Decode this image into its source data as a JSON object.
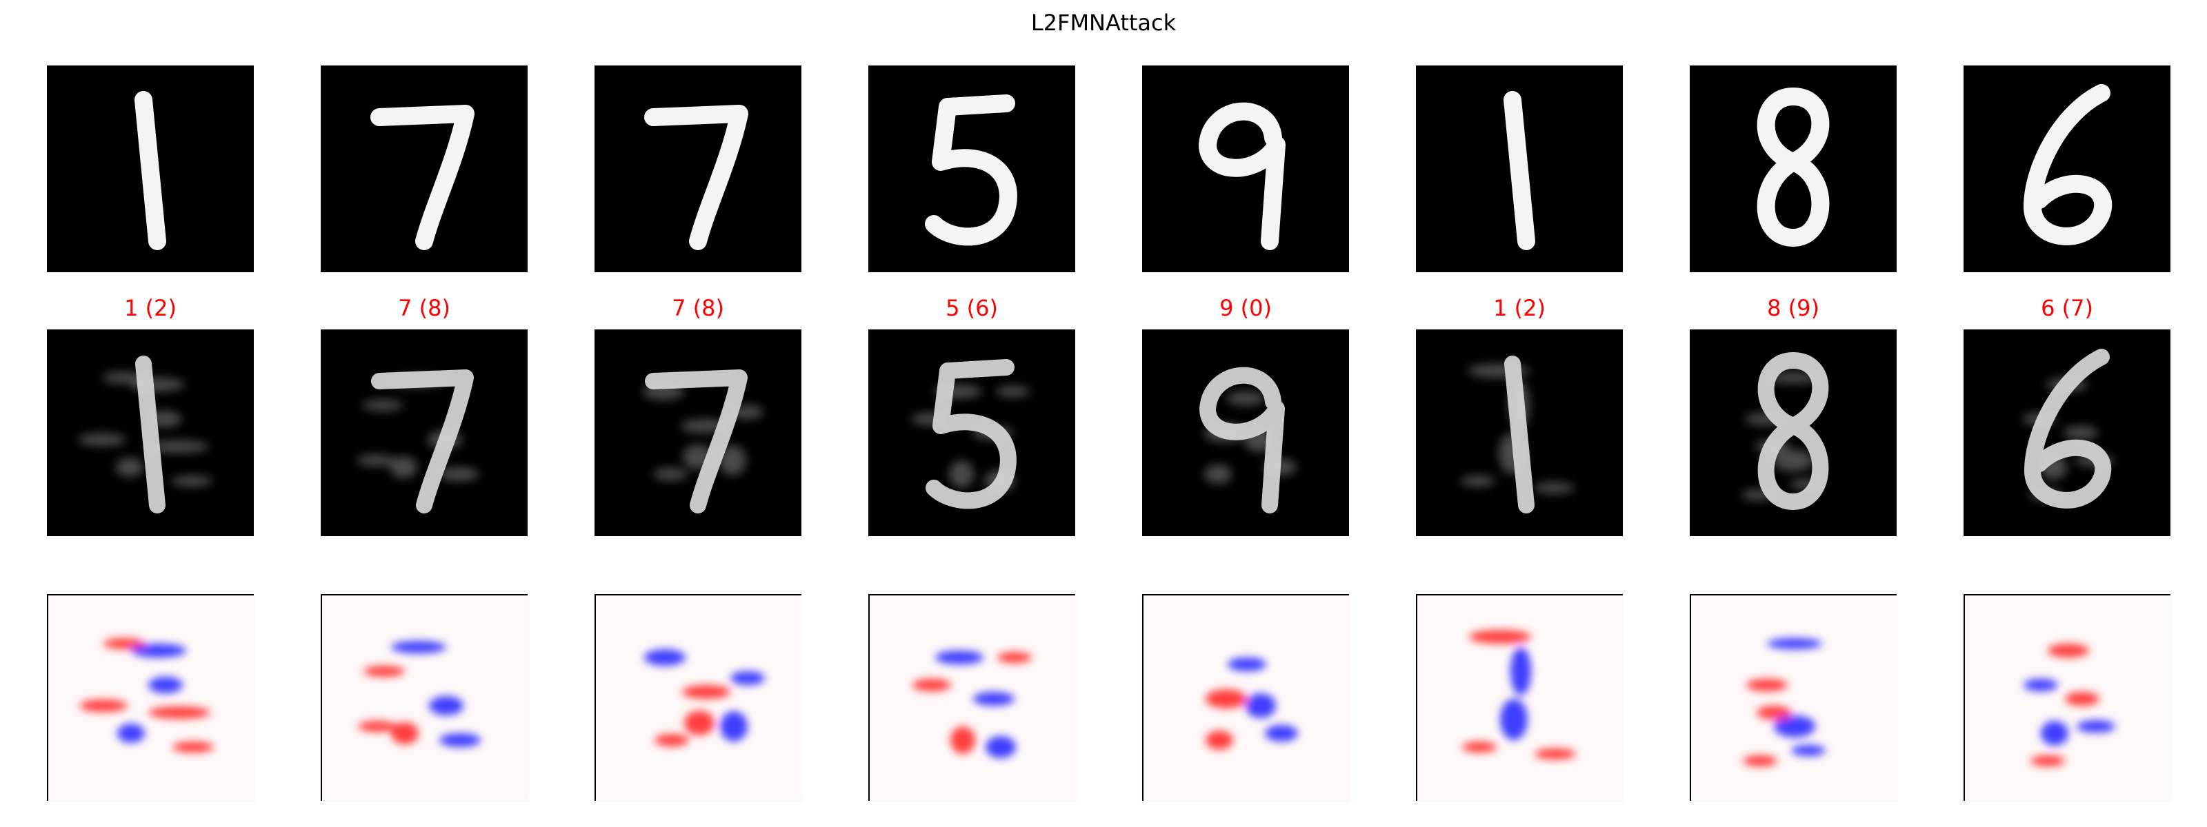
{
  "figure": {
    "title": "L2FMNAttack",
    "colors": {
      "background": "#ffffff",
      "image_bg": "#000000",
      "digit": "#f4f4f4",
      "label": "#ff0000",
      "positive": "#ff0000",
      "negative": "#0000ff"
    },
    "columns": [
      {
        "digit": "1",
        "label": "1 (2)"
      },
      {
        "digit": "7",
        "label": "7 (8)"
      },
      {
        "digit": "7",
        "label": "7 (8)"
      },
      {
        "digit": "5",
        "label": "5 (6)"
      },
      {
        "digit": "9",
        "label": "9 (0)"
      },
      {
        "digit": "1",
        "label": "1 (2)"
      },
      {
        "digit": "8",
        "label": "8 (9)"
      },
      {
        "digit": "6",
        "label": "6 (7)"
      }
    ]
  }
}
